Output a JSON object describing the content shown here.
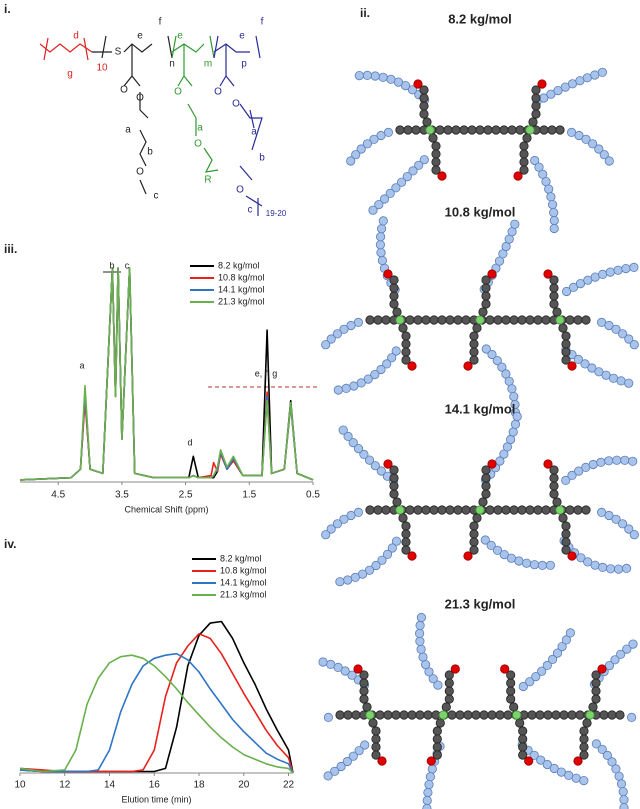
{
  "panels": {
    "i": "i.",
    "ii": "ii.",
    "iii": "iii.",
    "iv": "iv."
  },
  "structure": {
    "labels": [
      {
        "text": "g",
        "color": "#e02020"
      },
      {
        "text": "10",
        "color": "#e02020"
      },
      {
        "text": "d",
        "color": "#e02020"
      },
      {
        "text": "S",
        "color": "#222222"
      },
      {
        "text": "e",
        "color": "#222222"
      },
      {
        "text": "f",
        "color": "#222222"
      },
      {
        "text": "n",
        "color": "#222222"
      },
      {
        "text": "O",
        "color": "#222222"
      },
      {
        "text": "O",
        "color": "#222222"
      },
      {
        "text": "a",
        "color": "#222222"
      },
      {
        "text": "b",
        "color": "#222222"
      },
      {
        "text": "O",
        "color": "#222222"
      },
      {
        "text": "c",
        "color": "#222222"
      },
      {
        "text": "e",
        "color": "#2e9a2e"
      },
      {
        "text": "m",
        "color": "#2e9a2e"
      },
      {
        "text": "O",
        "color": "#2e9a2e"
      },
      {
        "text": "a",
        "color": "#2e9a2e"
      },
      {
        "text": "O",
        "color": "#2e9a2e"
      },
      {
        "text": "R",
        "color": "#2e9a2e"
      },
      {
        "text": "e",
        "color": "#2a2a9a"
      },
      {
        "text": "f",
        "color": "#2a2a9a"
      },
      {
        "text": "p",
        "color": "#2a2a9a"
      },
      {
        "text": "O",
        "color": "#2a2a9a"
      },
      {
        "text": "a",
        "color": "#2a2a9a"
      },
      {
        "text": "O",
        "color": "#2a2a9a"
      },
      {
        "text": "b",
        "color": "#2a2a9a"
      },
      {
        "text": "O",
        "color": "#2a2a9a"
      },
      {
        "text": "c",
        "color": "#2a2a9a"
      },
      {
        "text": "19-20",
        "color": "#2a2a9a"
      }
    ]
  },
  "cartoons": [
    "8.2 kg/mol",
    "10.8 kg/mol",
    "14.1 kg/mol",
    "21.3 kg/mol"
  ],
  "chart_data": [
    {
      "type": "line",
      "x_label": "Chemical Shift (ppm)",
      "xlim": [
        5.1,
        0.5
      ],
      "xticks": [
        4.5,
        3.5,
        2.5,
        1.5,
        0.5
      ],
      "ylim": [
        0,
        100
      ],
      "legend": "upper right",
      "annotations": [
        "a",
        "b",
        "c",
        "d",
        "e, f, g"
      ],
      "x": [
        5.1,
        4.3,
        4.15,
        4.08,
        4.0,
        3.8,
        3.65,
        3.6,
        3.56,
        3.5,
        3.38,
        3.3,
        3.0,
        2.45,
        2.38,
        2.3,
        2.1,
        2.06,
        2.0,
        1.95,
        1.85,
        1.75,
        1.6,
        1.3,
        1.22,
        1.15,
        0.95,
        0.85,
        0.75,
        0.5
      ],
      "series": [
        {
          "name": "8.2 kg/mol",
          "color": "#000000",
          "values": [
            1,
            2,
            6,
            40,
            6,
            4,
            100,
            40,
            100,
            20,
            100,
            4,
            2,
            2,
            12,
            2,
            2,
            2,
            5,
            14,
            6,
            10,
            3,
            3,
            71,
            4,
            6,
            38,
            4,
            1
          ]
        },
        {
          "name": "10.8 kg/mol",
          "color": "#e8211d",
          "values": [
            1,
            2,
            6,
            38,
            6,
            4,
            100,
            40,
            100,
            20,
            100,
            4,
            2,
            2,
            3,
            2,
            3,
            9,
            5,
            13,
            6,
            10,
            3,
            3,
            42,
            4,
            6,
            36,
            4,
            1
          ]
        },
        {
          "name": "14.1 kg/mol",
          "color": "#2f75c4",
          "values": [
            1,
            2,
            6,
            42,
            6,
            4,
            100,
            40,
            100,
            20,
            100,
            4,
            2,
            2,
            3,
            2,
            2,
            3,
            6,
            14,
            6,
            11,
            3,
            3,
            40,
            4,
            6,
            36,
            4,
            1
          ]
        },
        {
          "name": "21.3 kg/mol",
          "color": "#6ab04c",
          "values": [
            1,
            2,
            6,
            45,
            6,
            4,
            100,
            40,
            100,
            20,
            100,
            4,
            2,
            2,
            3,
            2,
            2,
            3,
            7,
            15,
            7,
            12,
            3,
            3,
            38,
            4,
            6,
            37,
            4,
            1
          ]
        }
      ]
    },
    {
      "type": "line",
      "x_label": "Elution time (min)",
      "xlim": [
        10,
        22.2
      ],
      "xticks": [
        10,
        12,
        14,
        16,
        18,
        20,
        22
      ],
      "ylim": [
        0,
        100
      ],
      "legend": "upper right",
      "x": [
        10,
        11,
        12,
        12.5,
        13,
        13.5,
        14,
        14.5,
        15,
        15.5,
        16,
        16.5,
        17,
        17.5,
        18,
        18.5,
        19,
        19.5,
        20,
        20.5,
        21,
        21.5,
        22,
        22.2
      ],
      "series": [
        {
          "name": "8.2 kg/mol",
          "color": "#000000",
          "values": [
            2,
            1,
            1,
            1,
            1,
            1,
            1,
            1,
            1,
            1,
            1,
            3,
            30,
            70,
            90,
            98,
            99,
            88,
            72,
            58,
            42,
            28,
            15,
            0
          ]
        },
        {
          "name": "10.8 kg/mol",
          "color": "#e8211d",
          "values": [
            3,
            2,
            1,
            1,
            1,
            1,
            1,
            1,
            1,
            2,
            15,
            50,
            72,
            83,
            91,
            88,
            78,
            65,
            52,
            40,
            28,
            18,
            10,
            0
          ]
        },
        {
          "name": "14.1 kg/mol",
          "color": "#2f75c4",
          "values": [
            2,
            1,
            1,
            1,
            1,
            2,
            15,
            40,
            58,
            70,
            75,
            77,
            78,
            74,
            66,
            55,
            45,
            35,
            27,
            20,
            13,
            9,
            6,
            0
          ]
        },
        {
          "name": "21.3 kg/mol",
          "color": "#6ab04c",
          "values": [
            3,
            1,
            2,
            15,
            45,
            62,
            72,
            76,
            77,
            75,
            70,
            63,
            55,
            46,
            38,
            30,
            23,
            17,
            12,
            9,
            6,
            4,
            3,
            0
          ]
        }
      ]
    }
  ]
}
